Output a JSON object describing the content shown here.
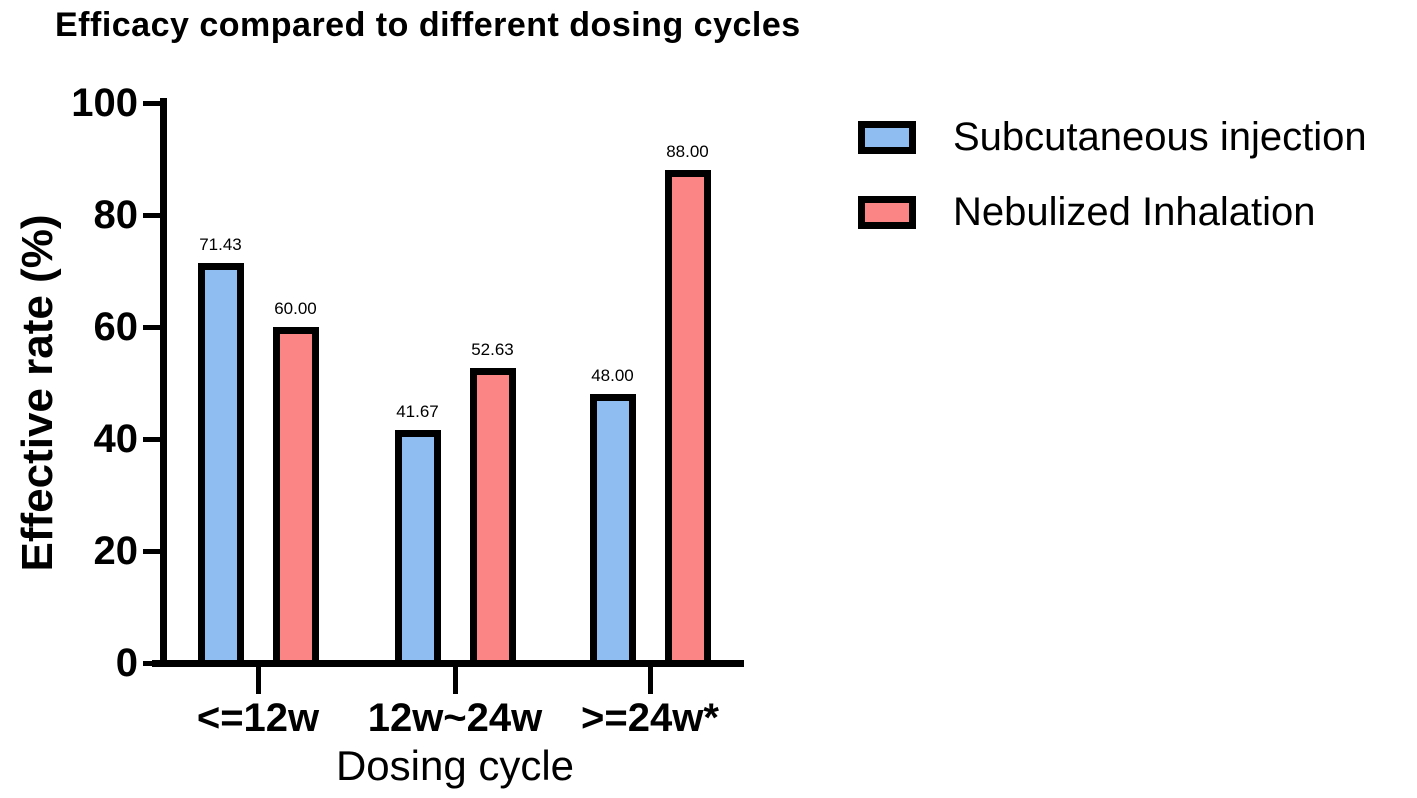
{
  "chart_data": {
    "type": "bar",
    "title": "Efficacy compared to different dosing cycles",
    "xlabel": "Dosing cycle",
    "ylabel": "Effective rate (%)",
    "ylim": [
      0,
      100
    ],
    "yticks": [
      0,
      20,
      40,
      60,
      80,
      100
    ],
    "categories": [
      "<=12w",
      "12w~24w",
      ">=24w*"
    ],
    "series": [
      {
        "name": "Subcutaneous injection",
        "color": "#8FBDF2",
        "values": [
          71.43,
          41.67,
          48.0
        ],
        "value_labels": [
          "71.43",
          "41.67",
          "48.00"
        ]
      },
      {
        "name": "Nebulized Inhalation",
        "color": "#FB8585",
        "values": [
          60.0,
          52.63,
          88.0
        ],
        "value_labels": [
          "60.00",
          "52.63",
          "88.00"
        ]
      }
    ],
    "legend_position": "right",
    "grid": false,
    "bar_border_color": "#000000"
  }
}
